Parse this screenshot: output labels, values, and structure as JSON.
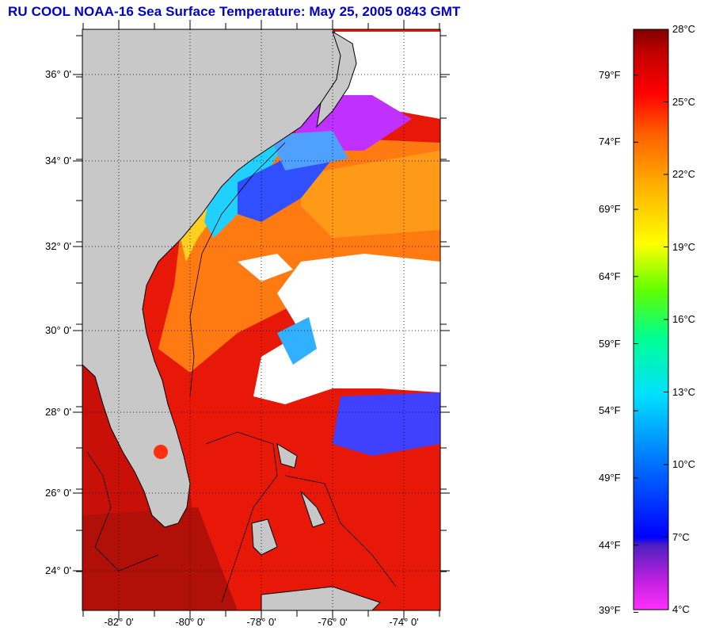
{
  "title": "RU COOL  NOAA-16  Sea Surface Temperature:  May 25, 2005 0843 GMT",
  "map": {
    "lat_labels": [
      "36° 0'",
      "34° 0'",
      "32° 0'",
      "30° 0'",
      "28° 0'",
      "26° 0'",
      "24° 0'"
    ],
    "lon_labels": [
      "-82° 0'",
      "-80° 0'",
      "-78° 0'",
      "-76° 0'",
      "-74° 0'"
    ],
    "colors": {
      "land": "#c8c8c8",
      "cloud": "#ffffff",
      "coast": "#000000",
      "grid": "#000000"
    }
  },
  "colorbar": {
    "celsius_labels": [
      "28°C",
      "25°C",
      "22°C",
      "19°C",
      "16°C",
      "13°C",
      "10°C",
      "7°C",
      "4°C"
    ],
    "fahrenheit_labels": [
      "79°F",
      "74°F",
      "69°F",
      "64°F",
      "59°F",
      "54°F",
      "49°F",
      "44°F",
      "39°F"
    ],
    "range_celsius": [
      4,
      28
    ],
    "colors": [
      "#ff40ff",
      "#9020c0",
      "#0020ff",
      "#0080ff",
      "#00e0ff",
      "#00ff80",
      "#80ff00",
      "#ffff00",
      "#ffc000",
      "#ff8000",
      "#ff2000",
      "#d00000",
      "#800000"
    ]
  }
}
